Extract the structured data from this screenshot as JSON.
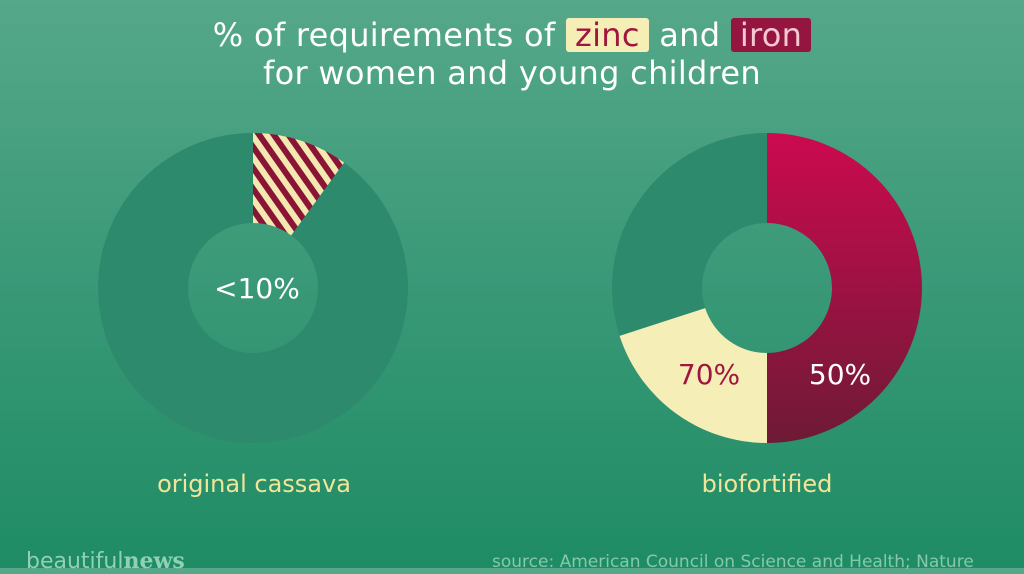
{
  "title": {
    "line1_prefix": "% of requirements of",
    "zinc": "zinc",
    "and": "and",
    "iron": "iron",
    "line2": "for women and young children"
  },
  "colors": {
    "ring": "#2e8a6c",
    "zinc": "#f6eeb7",
    "iron": "#a8154a",
    "stripe_dark": "#8a1436",
    "stripe_light": "#f3e9b0"
  },
  "chart_data": [
    {
      "type": "pie",
      "name": "original cassava",
      "center_label": "<10%",
      "slices": [
        {
          "name": "zinc and iron",
          "value": 0.1,
          "pattern": "striped"
        }
      ]
    },
    {
      "type": "pie",
      "name": "biofortified",
      "slices": [
        {
          "name": "iron",
          "value": 0.5,
          "label": "50%"
        },
        {
          "name": "zinc",
          "value": 0.2,
          "label": "70%"
        }
      ]
    }
  ],
  "captions": {
    "left": "original cassava",
    "right": "biofortified"
  },
  "footer": {
    "brand_light": "beautiful",
    "brand_bold": "news",
    "source": "source: American Council on Science and Health; Nature"
  }
}
